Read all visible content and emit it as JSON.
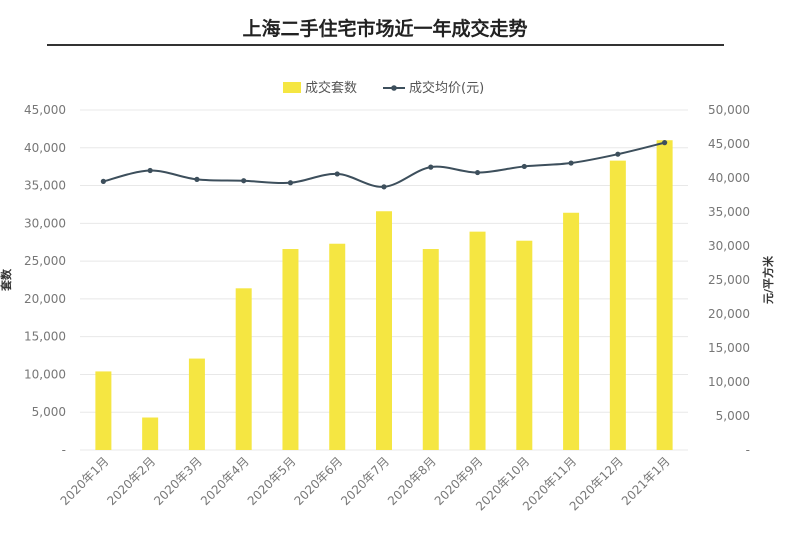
{
  "title": "上海二手住宅市场近一年成交走势",
  "chart_data": {
    "type": "bar",
    "categories": [
      "2020年1月",
      "2020年2月",
      "2020年3月",
      "2020年4月",
      "2020年5月",
      "2020年6月",
      "2020年7月",
      "2020年8月",
      "2020年9月",
      "2020年10月",
      "2020年11月",
      "2020年12月",
      "2021年1月"
    ],
    "series": [
      {
        "name": "成交套数",
        "type": "bar",
        "axis": "left",
        "color": "#f5e642",
        "values": [
          10400,
          4300,
          12100,
          21400,
          26600,
          27300,
          31600,
          26600,
          28900,
          27700,
          31400,
          38300,
          41000
        ]
      },
      {
        "name": "成交均价(元)",
        "type": "line",
        "axis": "right",
        "color": "#3d4f5c",
        "values": [
          39500,
          41100,
          39800,
          39600,
          39300,
          40600,
          38700,
          41600,
          40800,
          41700,
          42200,
          43500,
          45200
        ]
      }
    ],
    "y_left": {
      "label": "套数",
      "min": 0,
      "max": 45000,
      "ticks": [
        "-",
        "5,000",
        "10,000",
        "15,000",
        "20,000",
        "25,000",
        "30,000",
        "35,000",
        "40,000",
        "45,000"
      ]
    },
    "y_right": {
      "label": "元/平方米",
      "min": 0,
      "max": 50000,
      "ticks": [
        "-",
        "5,000",
        "10,000",
        "15,000",
        "20,000",
        "25,000",
        "30,000",
        "35,000",
        "40,000",
        "45,000",
        "50,000"
      ]
    },
    "legend_position": "top-center",
    "grid": true
  }
}
